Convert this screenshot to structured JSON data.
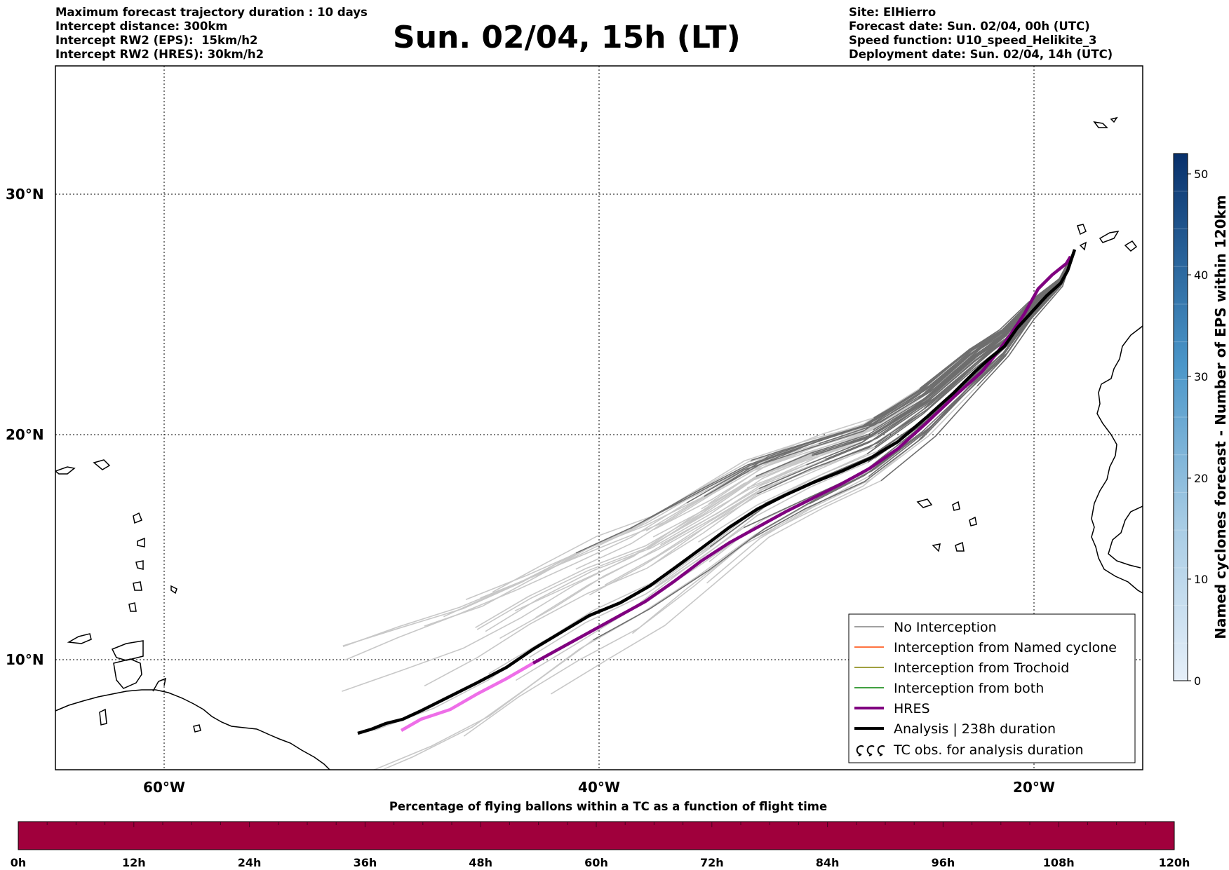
{
  "header_left": {
    "line1": "Maximum forecast trajectory duration : 10 days",
    "line2": "Intercept distance: 300km",
    "line3": "Intercept RW2 (EPS):  15km/h2",
    "line4": "Intercept RW2 (HRES): 30km/h2"
  },
  "title": "Sun. 02/04, 15h (LT)",
  "header_right": {
    "line1": "Site: ElHierro",
    "line2": "Forecast date: Sun. 02/04, 00h (UTC)",
    "line3": "Speed function: U10_speed_Helikite_3",
    "line4": "Deployment date: Sun. 02/04, 14h (UTC)"
  },
  "map": {
    "lon_range": [
      -65,
      15
    ],
    "lat_range": [
      5.4,
      34.7
    ],
    "lon_ticks": [
      "60°W",
      "40°W",
      "20°W"
    ],
    "lat_ticks": [
      "30°N",
      "20°N",
      "10°N"
    ],
    "grid": true,
    "grid_style": "dotted",
    "site": "ElHierro"
  },
  "legend": {
    "placement": "lower-right",
    "items": [
      {
        "label": "No Interception",
        "color": "#808080"
      },
      {
        "label": "Interception from Named cyclone",
        "color": "#ff4500"
      },
      {
        "label": "Interception from Trochoid",
        "color": "#808000"
      },
      {
        "label": "Interception from both",
        "color": "#008000"
      },
      {
        "label": "HRES",
        "color": "#800080"
      },
      {
        "label": "Analysis | 238h duration",
        "color": "#000000"
      },
      {
        "label": "TC obs. for analysis duration",
        "icon": "cyclone-icon"
      }
    ]
  },
  "colorbar": {
    "label": "Named cyclones forecast - Number of EPS within 120km",
    "ticks": [
      "0",
      "10",
      "20",
      "30",
      "40",
      "50"
    ],
    "min": 0,
    "max": 52,
    "color_low": "#e6eff9",
    "color_high": "#08306b"
  },
  "hbar": {
    "title": "Percentage of flying ballons within a TC as a function of flight time",
    "ticks": [
      "0h",
      "12h",
      "24h",
      "36h",
      "48h",
      "60h",
      "72h",
      "84h",
      "96h",
      "108h",
      "120h"
    ],
    "fill_color": "#a0003c"
  },
  "colors": {
    "eps_intercept_free": "#6e6e6e",
    "eps_faded": "#c8c8c8",
    "hres": "#800080",
    "hres_faded": "#ee6ee8",
    "analysis": "#000000"
  }
}
